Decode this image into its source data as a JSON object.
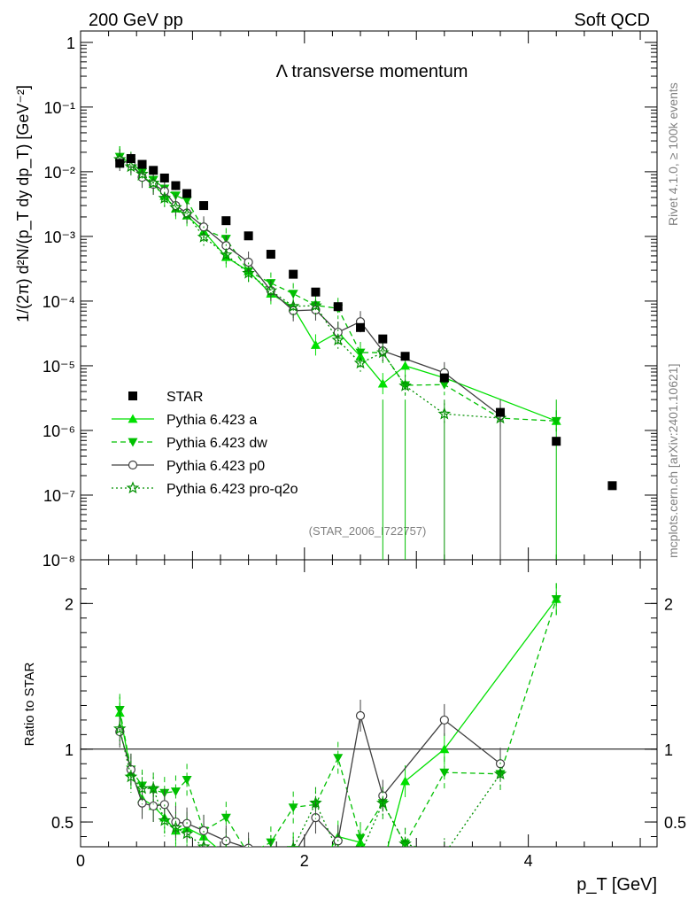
{
  "header": {
    "left": "200 GeV pp",
    "right": "Soft QCD",
    "side_rivet": "Rivet 4.1.0, ≥ 100k events",
    "side_mcplots": "mcplots.cern.ch [arXiv:2401.10621]"
  },
  "chart_data": {
    "type": "scatter",
    "title": "Λ transverse momentum",
    "analysis_id": "(STAR_2006_I722757)",
    "xlabel": "p_T [GeV]",
    "ylabel": "1/(2π)  d²N/(p_T dy dp_T) [GeV⁻²]",
    "ratio_ylabel": "Ratio to STAR",
    "xlim": [
      0,
      5.15
    ],
    "ylim_log": [
      1e-08,
      1.5
    ],
    "ratio_ylim": [
      0.33,
      2.3
    ],
    "x_ticks": [
      "0",
      "2",
      "4"
    ],
    "y_ticks": [
      "1",
      "10⁻¹",
      "10⁻²",
      "10⁻³",
      "10⁻⁴",
      "10⁻⁵",
      "10⁻⁶",
      "10⁻⁷",
      "10⁻⁸"
    ],
    "ratio_ticks": [
      "0.5",
      "1",
      "2"
    ],
    "legend": [
      "STAR",
      "Pythia 6.423 a",
      "Pythia 6.423 dw",
      "Pythia 6.423 p0",
      "Pythia 6.423 pro-q2o"
    ],
    "data": {
      "name": "STAR",
      "x": [
        0.35,
        0.45,
        0.55,
        0.65,
        0.75,
        0.85,
        0.95,
        1.1,
        1.3,
        1.5,
        1.7,
        1.9,
        2.1,
        2.3,
        2.5,
        2.7,
        2.9,
        3.25,
        3.75,
        4.25,
        4.75
      ],
      "y": [
        0.0135,
        0.016,
        0.013,
        0.0105,
        0.008,
        0.0061,
        0.0046,
        0.003,
        0.00175,
        0.00102,
        0.00053,
        0.00026,
        0.000138,
        8.2e-05,
        3.9e-05,
        2.6e-05,
        1.4e-05,
        6.5e-06,
        1.9e-06,
        6.8e-07,
        1.4e-07
      ]
    },
    "series": [
      {
        "name": "Pythia 6.423 a",
        "color": "#00e000",
        "x": [
          0.35,
          0.45,
          0.55,
          0.65,
          0.75,
          0.85,
          0.95,
          1.1,
          1.3,
          1.5,
          1.7,
          1.9,
          2.1,
          2.3,
          2.5,
          2.7,
          2.9,
          3.25,
          3.75,
          4.25
        ],
        "y": [
          0.017,
          0.0135,
          0.0085,
          0.0065,
          0.0042,
          0.0027,
          0.0021,
          0.0012,
          0.00048,
          0.00029,
          0.00013,
          8e-05,
          2.1e-05,
          3.3e-05,
          1.4e-05,
          5.3e-06,
          1e-05,
          6.5e-06,
          null,
          1.4e-06
        ],
        "ratio": [
          1.25,
          0.84,
          0.66,
          0.61,
          0.53,
          0.44,
          0.46,
          0.4,
          0.27,
          0.28,
          0.25,
          0.31,
          0.15,
          0.4,
          0.36,
          0.2,
          0.78,
          1.0,
          null,
          2.03
        ]
      },
      {
        "name": "Pythia 6.423 dw",
        "color": "#00c000",
        "x": [
          0.35,
          0.45,
          0.55,
          0.65,
          0.75,
          0.85,
          0.95,
          1.1,
          1.3,
          1.5,
          1.7,
          1.9,
          2.1,
          2.3,
          2.5,
          2.7,
          2.9,
          3.25,
          3.75,
          4.25
        ],
        "y": [
          0.017,
          0.014,
          0.0098,
          0.0075,
          0.0055,
          0.0043,
          0.0036,
          0.0013,
          0.00092,
          0.00029,
          0.00019,
          0.00013,
          8.6e-05,
          7.7e-05,
          1.6e-05,
          1.6e-05,
          5e-06,
          5.1e-06,
          1.55e-06,
          1.4e-06
        ],
        "ratio": [
          1.27,
          0.86,
          0.75,
          0.72,
          0.7,
          0.71,
          0.79,
          0.44,
          0.53,
          0.28,
          0.36,
          0.6,
          0.62,
          0.94,
          0.39,
          0.63,
          0.35,
          0.84,
          0.83,
          2.03
        ]
      },
      {
        "name": "Pythia 6.423 p0",
        "color": "#404040",
        "x": [
          0.35,
          0.45,
          0.55,
          0.65,
          0.75,
          0.85,
          0.95,
          1.1,
          1.3,
          1.5,
          1.7,
          1.9,
          2.1,
          2.3,
          2.5,
          2.7,
          2.9,
          3.25,
          3.75
        ],
        "y": [
          0.015,
          0.0135,
          0.0082,
          0.0064,
          0.005,
          0.003,
          0.0023,
          0.0014,
          0.00072,
          0.0004,
          0.000145,
          7.1e-05,
          7.3e-05,
          3.3e-05,
          4.8e-05,
          1.7e-05,
          null,
          7.8e-06,
          1.7e-06
        ],
        "ratio": [
          1.12,
          0.86,
          0.63,
          0.61,
          0.62,
          0.5,
          0.49,
          0.44,
          0.37,
          0.32,
          0.27,
          0.27,
          0.53,
          0.37,
          1.23,
          0.68,
          null,
          1.2,
          0.9
        ]
      },
      {
        "name": "Pythia 6.423 pro-q2o",
        "color": "#009000",
        "x": [
          0.35,
          0.45,
          0.55,
          0.65,
          0.75,
          0.85,
          0.95,
          1.1,
          1.3,
          1.5,
          1.7,
          1.9,
          2.1,
          2.3,
          2.5,
          2.7,
          2.9,
          3.25,
          3.75
        ],
        "y": [
          0.0155,
          0.012,
          0.0092,
          0.0067,
          0.0039,
          0.0028,
          0.0022,
          0.00098,
          0.00052,
          0.00027,
          0.000145,
          8.3e-05,
          8.5e-05,
          2.5e-05,
          1.1e-05,
          1.6e-05,
          4.9e-06,
          1.8e-06,
          1.55e-06
        ],
        "ratio": [
          1.14,
          0.81,
          0.73,
          0.73,
          0.51,
          0.46,
          0.42,
          0.33,
          0.3,
          0.26,
          0.3,
          0.32,
          0.63,
          0.3,
          0.28,
          0.63,
          0.35,
          0.28,
          0.83
        ]
      }
    ]
  }
}
